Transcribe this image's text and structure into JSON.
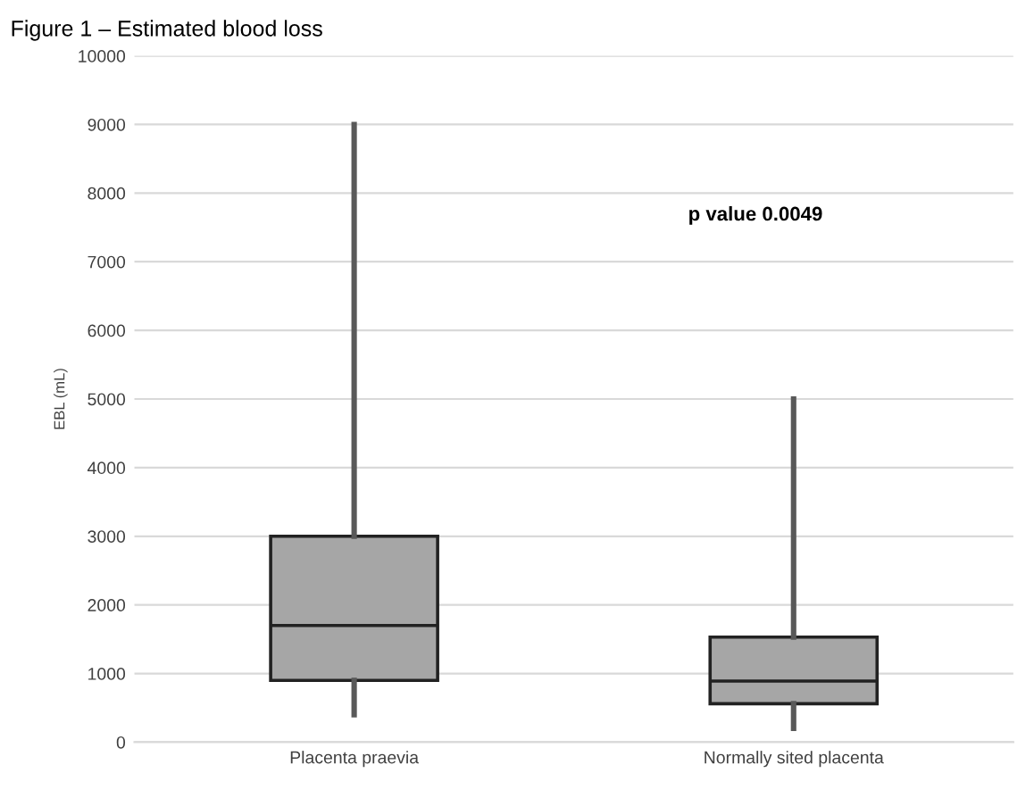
{
  "chart_data": {
    "type": "box",
    "title": "Figure 1 – Estimated blood loss",
    "ylabel": "EBL (mL)",
    "categories": [
      "Placenta praevia",
      "Normally sited placenta"
    ],
    "boxes": [
      {
        "low": 400,
        "q1": 900,
        "median": 1700,
        "q3": 3000,
        "high": 9000
      },
      {
        "low": 200,
        "q1": 560,
        "median": 890,
        "q3": 1530,
        "high": 5000
      }
    ],
    "color": "#a6a6a6",
    "ylim": [
      0,
      10000
    ],
    "yticks": [
      0,
      1000,
      2000,
      3000,
      4000,
      5000,
      6000,
      7000,
      8000,
      9000,
      10000
    ],
    "grid": "y",
    "annotations": [
      "p value 0.0049"
    ]
  }
}
